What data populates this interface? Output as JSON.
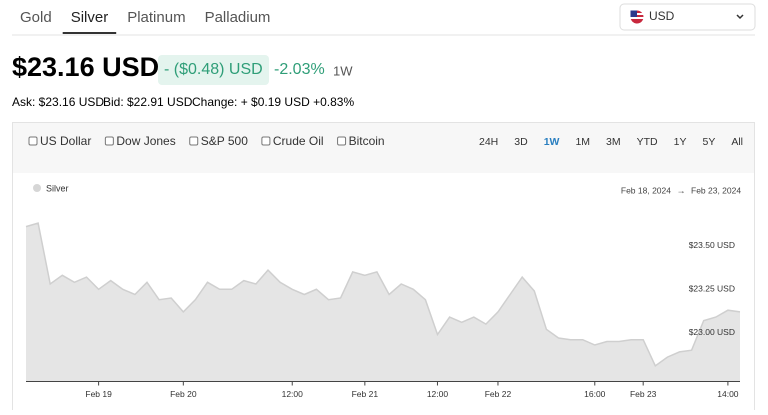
{
  "tabs": [
    "Gold",
    "Silver",
    "Platinum",
    "Palladium"
  ],
  "active_tab": 1,
  "currency": "USD",
  "price": "$23.16 USD",
  "change": "- ($0.48) USD",
  "change_pct": "-2.03%",
  "period": "1W",
  "quote": {
    "ask": "Ask: $23.16 USD",
    "bid": "Bid: $22.91 USD",
    "change": "Change: + $0.19 USD +0.83%"
  },
  "compare": [
    "US Dollar",
    "Dow Jones",
    "S&P 500",
    "Crude Oil",
    "Bitcoin"
  ],
  "ranges": [
    "24H",
    "3D",
    "1W",
    "1M",
    "3M",
    "YTD",
    "1Y",
    "5Y",
    "All"
  ],
  "active_range": 2,
  "chart_data": {
    "type": "area",
    "date_from": "Feb 18, 2024",
    "date_arrow": "→",
    "date_to": "Feb 23, 2024",
    "categories": [
      null,
      null,
      null,
      null,
      null,
      null,
      "Feb 19",
      null,
      null,
      null,
      null,
      null,
      null,
      "Feb 20",
      null,
      null,
      null,
      null,
      null,
      null,
      null,
      null,
      "12:00",
      null,
      null,
      null,
      null,
      null,
      "Feb 21",
      null,
      null,
      null,
      null,
      null,
      "12:00",
      null,
      null,
      null,
      null,
      "Feb 22",
      null,
      null,
      null,
      null,
      null,
      null,
      null,
      "16:00",
      null,
      null,
      null,
      "Feb 23",
      null,
      null,
      null,
      null,
      null,
      null,
      "14:00",
      null
    ],
    "series": [
      {
        "name": "Silver",
        "color": "#cfcfcf",
        "values": [
          23.61,
          23.63,
          23.28,
          23.33,
          23.29,
          23.32,
          23.25,
          23.3,
          23.25,
          23.22,
          23.29,
          23.19,
          23.2,
          23.12,
          23.19,
          23.29,
          23.25,
          23.25,
          23.3,
          23.28,
          23.36,
          23.29,
          23.25,
          23.22,
          23.25,
          23.19,
          23.2,
          23.35,
          23.33,
          23.35,
          23.22,
          23.28,
          23.25,
          23.19,
          22.99,
          23.09,
          23.06,
          23.09,
          23.05,
          23.12,
          23.22,
          23.32,
          23.24,
          23.02,
          22.97,
          22.96,
          22.96,
          22.93,
          22.95,
          22.95,
          22.96,
          22.96,
          22.81,
          22.86,
          22.89,
          22.9,
          23.07,
          23.09,
          23.13,
          23.12
        ]
      }
    ],
    "ylim": [
      22.72,
      23.74
    ],
    "yticks": [
      {
        "value": 23.0,
        "label": "$23.00 USD"
      },
      {
        "value": 23.25,
        "label": "$23.25 USD"
      },
      {
        "value": 23.5,
        "label": "$23.50 USD"
      }
    ]
  }
}
